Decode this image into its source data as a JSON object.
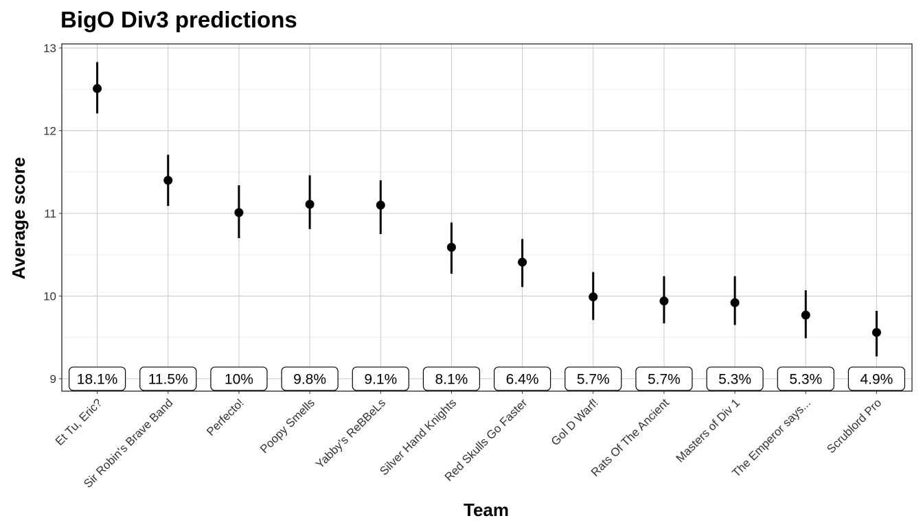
{
  "chart_data": {
    "type": "scatter",
    "title": "BigO Div3 predictions",
    "xlabel": "Team",
    "ylabel": "Average score",
    "ylim": [
      8.85,
      13.05
    ],
    "yticks": [
      9,
      10,
      11,
      12,
      13
    ],
    "grid": true,
    "categories": [
      "Et Tu, Eric?",
      "Sir Robin's Brave Band",
      "Perfecto!",
      "Poopy Smells",
      "Yabby's ReBBeLs",
      "Silver Hand Knights",
      "Red Skulls Go Faster",
      "Gol D Warf!",
      "Rats Of The Ancient",
      "Masters of Div 1",
      "The Emperor says...",
      "Scrublord Pro"
    ],
    "series": [
      {
        "values": [
          12.51,
          11.4,
          11.01,
          11.11,
          11.1,
          10.59,
          10.41,
          9.99,
          9.94,
          9.92,
          9.77,
          9.56
        ],
        "lower": [
          12.21,
          11.09,
          10.7,
          10.81,
          10.75,
          10.27,
          10.11,
          9.71,
          9.67,
          9.65,
          9.49,
          9.27
        ],
        "upper": [
          12.83,
          11.71,
          11.34,
          11.46,
          11.4,
          10.89,
          10.69,
          10.29,
          10.24,
          10.24,
          10.07,
          9.82
        ]
      }
    ],
    "labels": [
      "18.1%",
      "11.5%",
      "10%",
      "9.8%",
      "9.1%",
      "8.1%",
      "6.4%",
      "5.7%",
      "5.7%",
      "5.3%",
      "5.3%",
      "4.9%"
    ],
    "label_y": 9
  }
}
